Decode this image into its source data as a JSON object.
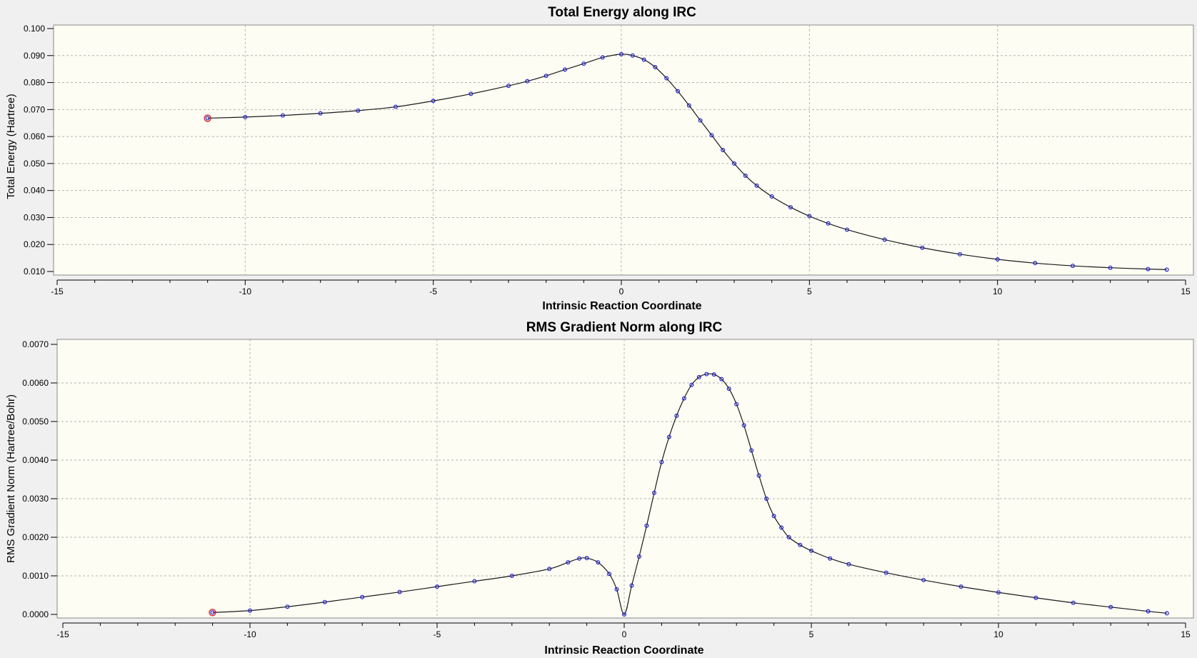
{
  "chart_data": [
    {
      "type": "line",
      "title": "Total Energy along IRC",
      "xlabel": "Intrinsic Reaction Coordinate",
      "ylabel": "Total Energy (Hartree)",
      "xlim": [
        -15,
        15
      ],
      "ylim": [
        0.01,
        0.1
      ],
      "xticks": [
        "-15",
        "-10",
        "-5",
        "0",
        "5",
        "10",
        "15"
      ],
      "yticks": [
        "0.010",
        "0.020",
        "0.030",
        "0.040",
        "0.050",
        "0.060",
        "0.070",
        "0.080",
        "0.090",
        "0.100"
      ],
      "grid": true,
      "series": [
        {
          "x": [
            -11.0,
            -10.0,
            -9.0,
            -8.0,
            -7.0,
            -6.0,
            -5.0,
            -4.0,
            -3.0,
            -2.5,
            -2.0,
            -1.5,
            -1.0,
            -0.5,
            0.0,
            0.3,
            0.6,
            0.9,
            1.2,
            1.5,
            1.8,
            2.1,
            2.4,
            2.7,
            3.0,
            3.3,
            3.6,
            4.0,
            4.5,
            5.0,
            5.5,
            6.0,
            7.0,
            8.0,
            9.0,
            10.0,
            11.0,
            12.0,
            13.0,
            14.0,
            14.5
          ],
          "y": [
            0.0668,
            0.0672,
            0.0678,
            0.0686,
            0.0696,
            0.071,
            0.0732,
            0.0758,
            0.0788,
            0.0805,
            0.0825,
            0.0848,
            0.087,
            0.0893,
            0.0905,
            0.09,
            0.0885,
            0.0857,
            0.0816,
            0.0768,
            0.0715,
            0.066,
            0.0605,
            0.055,
            0.05,
            0.0455,
            0.0418,
            0.0378,
            0.0338,
            0.0305,
            0.0278,
            0.0255,
            0.0218,
            0.0188,
            0.0164,
            0.0145,
            0.0131,
            0.0121,
            0.0114,
            0.0109,
            0.0107
          ]
        }
      ],
      "start_marker": {
        "x": -11.0,
        "y": 0.0668
      }
    },
    {
      "type": "line",
      "title": "RMS Gradient Norm along IRC",
      "xlabel": "Intrinsic Reaction Coordinate",
      "ylabel": "RMS Gradient Norm (Hartree/Bohr)",
      "xlim": [
        -15,
        15
      ],
      "ylim": [
        0.0,
        0.007
      ],
      "xticks": [
        "-15",
        "-10",
        "-5",
        "0",
        "5",
        "10",
        "15"
      ],
      "yticks": [
        "0.0000",
        "0.0010",
        "0.0020",
        "0.0030",
        "0.0040",
        "0.0050",
        "0.0060",
        "0.0070"
      ],
      "grid": true,
      "series": [
        {
          "x": [
            -11.0,
            -10.0,
            -9.0,
            -8.0,
            -7.0,
            -6.0,
            -5.0,
            -4.0,
            -3.0,
            -2.0,
            -1.5,
            -1.2,
            -1.0,
            -0.7,
            -0.4,
            -0.2,
            0.0,
            0.2,
            0.4,
            0.6,
            0.8,
            1.0,
            1.2,
            1.4,
            1.6,
            1.8,
            2.0,
            2.2,
            2.4,
            2.6,
            2.8,
            3.0,
            3.2,
            3.4,
            3.6,
            3.8,
            4.0,
            4.2,
            4.4,
            4.7,
            5.0,
            5.5,
            6.0,
            7.0,
            8.0,
            9.0,
            10.0,
            11.0,
            12.0,
            13.0,
            14.0,
            14.5
          ],
          "y": [
            5e-05,
            0.0001,
            0.0002,
            0.00032,
            0.00045,
            0.00058,
            0.00072,
            0.00086,
            0.001,
            0.00118,
            0.00135,
            0.00145,
            0.00146,
            0.00135,
            0.00105,
            0.00065,
            0.0,
            0.00075,
            0.0015,
            0.0023,
            0.00315,
            0.00395,
            0.0046,
            0.00515,
            0.0056,
            0.00595,
            0.00615,
            0.00623,
            0.00622,
            0.0061,
            0.00585,
            0.00545,
            0.0049,
            0.00425,
            0.0036,
            0.003,
            0.00255,
            0.00225,
            0.002,
            0.0018,
            0.00165,
            0.00145,
            0.0013,
            0.00108,
            0.00089,
            0.00072,
            0.00057,
            0.00043,
            0.0003,
            0.00019,
            8e-05,
            3e-05
          ]
        }
      ],
      "start_marker": {
        "x": -11.0,
        "y": 5e-05
      }
    }
  ],
  "colors": {
    "plot_background": "#fdfdf3",
    "line": "#1a1a1a",
    "marker": "#1f1fd6",
    "start_marker": "#e02020",
    "grid": "#b4b4b4"
  }
}
